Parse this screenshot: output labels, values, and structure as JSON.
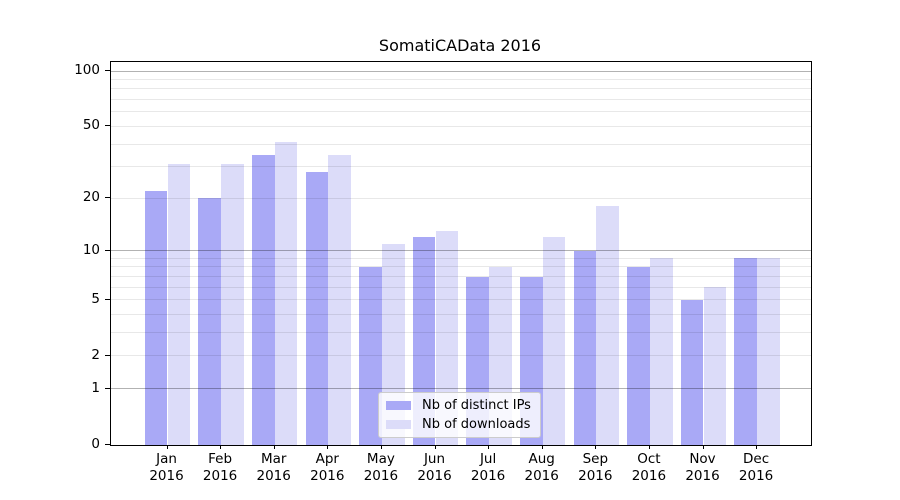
{
  "chart_data": {
    "type": "bar",
    "title": "SomatiCAData 2016",
    "categories": [
      {
        "month": "Jan",
        "year": "2016"
      },
      {
        "month": "Feb",
        "year": "2016"
      },
      {
        "month": "Mar",
        "year": "2016"
      },
      {
        "month": "Apr",
        "year": "2016"
      },
      {
        "month": "May",
        "year": "2016"
      },
      {
        "month": "Jun",
        "year": "2016"
      },
      {
        "month": "Jul",
        "year": "2016"
      },
      {
        "month": "Aug",
        "year": "2016"
      },
      {
        "month": "Sep",
        "year": "2016"
      },
      {
        "month": "Oct",
        "year": "2016"
      },
      {
        "month": "Nov",
        "year": "2016"
      },
      {
        "month": "Dec",
        "year": "2016"
      }
    ],
    "series": [
      {
        "name": "Nb of distinct IPs",
        "color": "#a9a9f6",
        "values": [
          22,
          20,
          35,
          28,
          8,
          12,
          7,
          7,
          10,
          8,
          5,
          9
        ]
      },
      {
        "name": "Nb of downloads",
        "color": "#dcdcf9",
        "values": [
          31,
          31,
          41,
          35,
          11,
          13,
          8,
          12,
          18,
          9,
          6,
          9
        ]
      }
    ],
    "y_axis": {
      "scale": "log10(1+x)",
      "max": 100,
      "tick_labels": [
        0,
        1,
        2,
        5,
        10,
        20,
        50,
        100
      ],
      "major_gridlines": [
        1,
        10,
        100
      ],
      "minor_gridlines": [
        2,
        3,
        4,
        5,
        6,
        7,
        8,
        9,
        20,
        30,
        40,
        50,
        60,
        70,
        80,
        90
      ]
    },
    "legend": {
      "position": "lower center"
    },
    "colors": {
      "grid_major": "#b0b0b0",
      "grid_minor": "#e8e8e8",
      "axis": "#000000",
      "background": "#ffffff"
    }
  }
}
